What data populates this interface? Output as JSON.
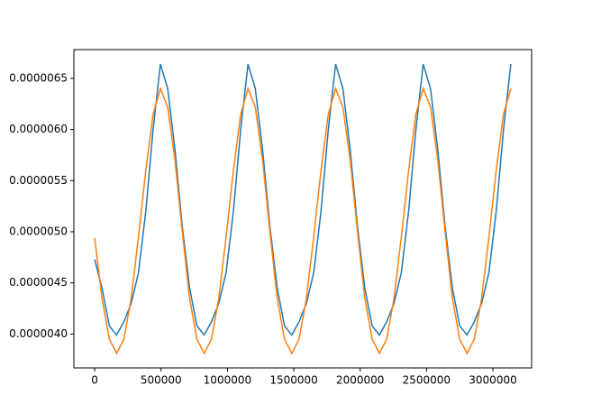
{
  "chart_data": {
    "type": "line",
    "x": [
      0,
      55000,
      110000,
      165000,
      220000,
      275000,
      330000,
      385000,
      440000,
      495000,
      550000,
      605000,
      660000,
      715000,
      770000,
      825000,
      880000,
      935000,
      990000,
      1045000,
      1100000,
      1155000,
      1210000,
      1265000,
      1320000,
      1375000,
      1430000,
      1485000,
      1540000,
      1595000,
      1650000,
      1705000,
      1760000,
      1815000,
      1870000,
      1925000,
      1980000,
      2035000,
      2090000,
      2145000,
      2200000,
      2255000,
      2310000,
      2365000,
      2420000,
      2475000,
      2530000,
      2585000,
      2640000,
      2695000,
      2750000,
      2805000,
      2860000,
      2915000,
      2970000,
      3025000,
      3080000,
      3135000
    ],
    "series": [
      {
        "color": "#1f77b4",
        "values": [
          4.73e-06,
          4.45e-06,
          4.08e-06,
          3.99e-06,
          4.12e-06,
          4.3e-06,
          4.6e-06,
          5.2e-06,
          6e-06,
          6.64e-06,
          6.4e-06,
          5.8e-06,
          5.05e-06,
          4.45e-06,
          4.08e-06,
          3.99e-06,
          4.12e-06,
          4.3e-06,
          4.6e-06,
          5.2e-06,
          6e-06,
          6.64e-06,
          6.4e-06,
          5.8e-06,
          5.05e-06,
          4.45e-06,
          4.08e-06,
          3.99e-06,
          4.12e-06,
          4.3e-06,
          4.6e-06,
          5.2e-06,
          6e-06,
          6.64e-06,
          6.4e-06,
          5.8e-06,
          5.05e-06,
          4.45e-06,
          4.08e-06,
          3.99e-06,
          4.12e-06,
          4.3e-06,
          4.6e-06,
          5.2e-06,
          6e-06,
          6.64e-06,
          6.4e-06,
          5.8e-06,
          5.05e-06,
          4.45e-06,
          4.08e-06,
          3.99e-06,
          4.12e-06,
          4.3e-06,
          4.6e-06,
          5.2e-06,
          6e-06,
          6.64e-06
        ]
      },
      {
        "color": "#ff7f0e",
        "values": [
          4.94e-06,
          4.35e-06,
          3.95e-06,
          3.81e-06,
          3.95e-06,
          4.35e-06,
          4.95e-06,
          5.6e-06,
          6.15e-06,
          6.4e-06,
          6.22e-06,
          5.7e-06,
          5e-06,
          4.35e-06,
          3.95e-06,
          3.81e-06,
          3.95e-06,
          4.35e-06,
          4.95e-06,
          5.6e-06,
          6.15e-06,
          6.4e-06,
          6.22e-06,
          5.7e-06,
          5e-06,
          4.35e-06,
          3.95e-06,
          3.81e-06,
          3.95e-06,
          4.35e-06,
          4.95e-06,
          5.6e-06,
          6.15e-06,
          6.4e-06,
          6.22e-06,
          5.7e-06,
          5e-06,
          4.35e-06,
          3.95e-06,
          3.81e-06,
          3.95e-06,
          4.35e-06,
          4.95e-06,
          5.6e-06,
          6.15e-06,
          6.4e-06,
          6.22e-06,
          5.7e-06,
          5e-06,
          4.35e-06,
          3.95e-06,
          3.81e-06,
          3.95e-06,
          4.35e-06,
          4.95e-06,
          5.6e-06,
          6.15e-06,
          6.4e-06
        ]
      }
    ],
    "xlim": [
      -156750,
      3291750
    ],
    "ylim": [
      3.6685e-06,
      6.7815e-06
    ],
    "xticks": [
      0,
      500000,
      1000000,
      1500000,
      2000000,
      2500000,
      3000000
    ],
    "yticks": [
      {
        "value": 4e-06,
        "label": "0.0000040"
      },
      {
        "value": 4.5e-06,
        "label": "0.0000045"
      },
      {
        "value": 5e-06,
        "label": "0.0000050"
      },
      {
        "value": 5.5e-06,
        "label": "0.0000055"
      },
      {
        "value": 6e-06,
        "label": "0.0000060"
      },
      {
        "value": 6.5e-06,
        "label": "0.0000065"
      }
    ],
    "grid": false
  }
}
